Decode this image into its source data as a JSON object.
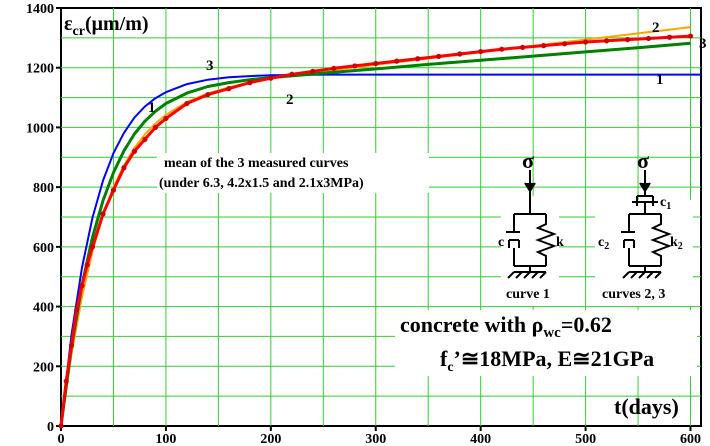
{
  "chart_data": {
    "type": "line",
    "y_axis_label": {
      "symbol": "ε",
      "sub": "cr",
      "unit": "(μm/m)"
    },
    "x_axis_label": "t(days)",
    "xlim": [
      0,
      610
    ],
    "ylim": [
      0,
      1400
    ],
    "x_ticks": [
      0,
      100,
      200,
      300,
      400,
      500,
      600
    ],
    "y_ticks": [
      0,
      200,
      400,
      600,
      800,
      1000,
      1200,
      1400
    ],
    "x_tick_labels": [
      "0",
      "100",
      "200",
      "300",
      "400",
      "500",
      "600"
    ],
    "y_tick_labels": [
      "0",
      "200",
      "400",
      "600",
      "800",
      "1000",
      "1200",
      "1400"
    ],
    "grid": true,
    "series": [
      {
        "name": "1",
        "color": "#0000ff",
        "x": [
          0,
          10,
          20,
          30,
          40,
          50,
          60,
          70,
          80,
          90,
          100,
          120,
          140,
          160,
          180,
          200,
          250,
          300,
          350,
          400,
          450,
          500,
          550,
          610
        ],
        "y": [
          0,
          305,
          531,
          698,
          822,
          914,
          982,
          1033,
          1070,
          1098,
          1118,
          1145,
          1160,
          1168,
          1172,
          1175,
          1177,
          1177,
          1177,
          1177,
          1177,
          1177,
          1177,
          1177
        ]
      },
      {
        "name": "2",
        "color": "#ffa500",
        "x": [
          0,
          10,
          20,
          30,
          40,
          50,
          60,
          70,
          80,
          90,
          100,
          120,
          140,
          160,
          180,
          200,
          250,
          300,
          350,
          400,
          450,
          500,
          550,
          600
        ],
        "y": [
          0,
          240,
          433,
          585,
          706,
          800,
          873,
          931,
          977,
          1013,
          1042,
          1085,
          1114,
          1134,
          1150,
          1163,
          1188,
          1210,
          1231,
          1252,
          1273,
          1294,
          1315,
          1336
        ]
      },
      {
        "name": "3",
        "color": "#008000",
        "x": [
          0,
          10,
          20,
          30,
          40,
          50,
          60,
          70,
          80,
          90,
          100,
          120,
          140,
          160,
          180,
          200,
          250,
          300,
          350,
          400,
          450,
          500,
          550,
          600
        ],
        "y": [
          0,
          265,
          473,
          632,
          755,
          849,
          922,
          978,
          1021,
          1054,
          1080,
          1115,
          1137,
          1150,
          1160,
          1167,
          1182,
          1196,
          1211,
          1225,
          1239,
          1253,
          1267,
          1282
        ]
      },
      {
        "name": "mean of the 3 measured curves",
        "color": "#ff0000",
        "x": [
          0,
          5,
          10,
          15,
          20,
          25,
          30,
          40,
          50,
          60,
          70,
          80,
          90,
          100,
          120,
          140,
          160,
          180,
          200,
          220,
          240,
          260,
          280,
          300,
          320,
          340,
          360,
          380,
          400,
          420,
          440,
          460,
          480,
          500,
          520,
          540,
          560,
          580,
          600
        ],
        "y": [
          0,
          150,
          270,
          390,
          470,
          540,
          600,
          710,
          790,
          865,
          920,
          960,
          1000,
          1030,
          1080,
          1110,
          1130,
          1150,
          1165,
          1178,
          1188,
          1198,
          1206,
          1214,
          1222,
          1230,
          1238,
          1246,
          1254,
          1262,
          1268,
          1274,
          1280,
          1286,
          1290,
          1294,
          1298,
          1302,
          1306
        ]
      }
    ],
    "curve_labels": [
      "1",
      "2",
      "3"
    ],
    "annotation": {
      "line1": "mean of the 3 measured curves",
      "line2": "(under 6.3, 4.2x1.5 and 2.1x3MPa)"
    },
    "model_diagrams": {
      "sigma": "σ",
      "left": {
        "c": "c",
        "k": "k",
        "caption": "curve 1"
      },
      "right": {
        "c1": "c",
        "c1_sub": "1",
        "c2": "c",
        "c2_sub": "2",
        "k2": "k",
        "k2_sub": "2",
        "caption": "curves 2, 3"
      }
    },
    "info": {
      "line1_prefix": "concrete with ",
      "rho": "ρ",
      "rho_sub": "wc",
      "rho_value": "=0.62",
      "line2": "f",
      "line2_sub": "c",
      "line2_rest": "’≅18MPa, E≅21GPa"
    }
  }
}
